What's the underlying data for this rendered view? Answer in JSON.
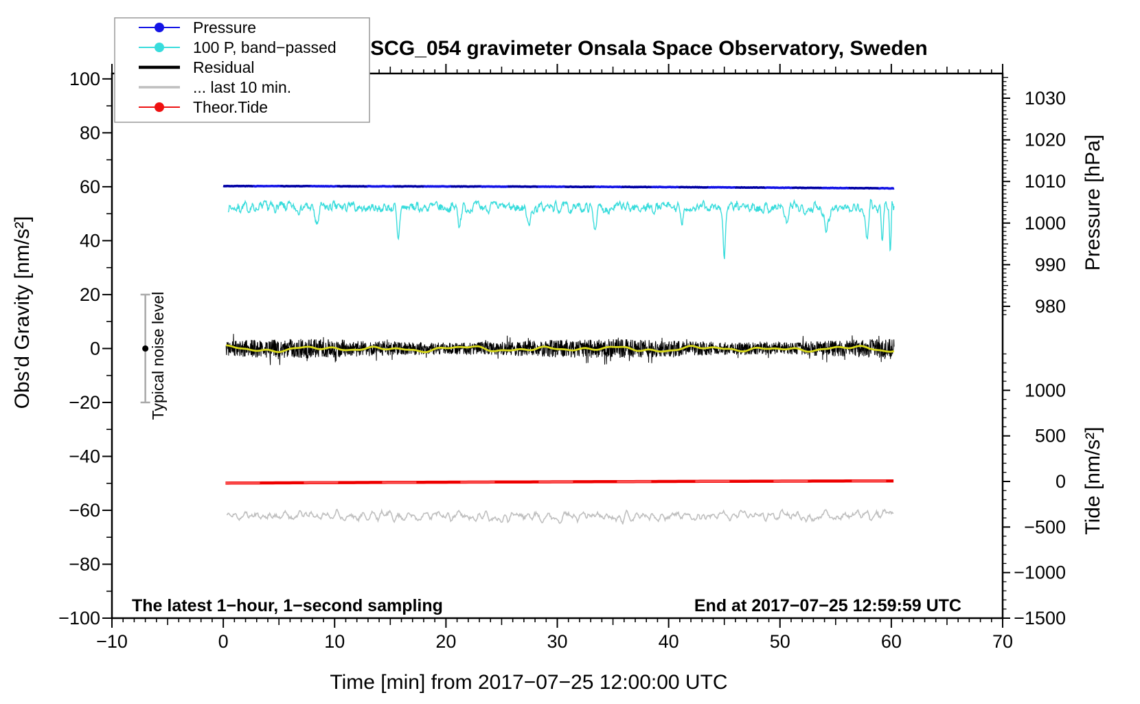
{
  "title": "SCG_054 gravimeter Onsala Space Observatory, Sweden",
  "legend": {
    "items": [
      {
        "label": "Pressure",
        "color": "#1414E6",
        "line_width": 2,
        "marker": true
      },
      {
        "label": "100 P, band−passed",
        "color": "#38DCDC",
        "line_width": 2,
        "marker": true
      },
      {
        "label": "Residual",
        "color": "#000000",
        "line_width": 4.5,
        "marker": false
      },
      {
        "label": "... last 10 min.",
        "color": "#BFBFBF",
        "line_width": 3.5,
        "marker": false
      },
      {
        "label": "Theor.Tide",
        "color": "#EE1111",
        "line_width": 2,
        "marker": true
      }
    ]
  },
  "axes": {
    "x": {
      "label": "Time [min] from 2017−07−25 12:00:00 UTC",
      "range": [
        -10,
        70
      ],
      "tick_values": [
        -10,
        0,
        10,
        20,
        30,
        40,
        50,
        60,
        70
      ],
      "tick_labels": [
        "−10",
        "0",
        "10",
        "20",
        "30",
        "40",
        "50",
        "60",
        "70"
      ],
      "minor_step": 1,
      "medium_step": 5
    },
    "gravity": {
      "label": "Obs'd Gravity [nm/s²]",
      "range": [
        -100,
        100
      ],
      "tick_values": [
        100,
        80,
        60,
        40,
        20,
        0,
        -20,
        -40,
        -60,
        -80,
        -100
      ],
      "tick_labels": [
        "100",
        "80",
        "60",
        "40",
        "20",
        "0",
        "−20",
        "−40",
        "−60",
        "−80",
        "−100"
      ],
      "minor_step": 10
    },
    "pressure": {
      "label": "Pressure [hPa]",
      "tick_values": [
        1030,
        1020,
        1010,
        1000,
        990,
        980
      ],
      "tick_labels": [
        "1030",
        "1020",
        "1010",
        "1000",
        "990",
        "980"
      ],
      "minor_step": 1,
      "medium_step": 5
    },
    "tide": {
      "label": "Tide [nm/s²]",
      "tick_values": [
        1000,
        500,
        0,
        -500,
        -1000,
        -1500
      ],
      "tick_labels": [
        "1000",
        "500",
        "0",
        "−500",
        "−1000",
        "−1500"
      ],
      "minor_step": 100
    }
  },
  "annotations": {
    "sampling": "The latest 1−hour, 1−second sampling",
    "end_time": "End at 2017−07−25 12:59:59 UTC",
    "noise_label": "Typical noise level"
  },
  "chart_data": {
    "type": "line",
    "title": "SCG_054 gravimeter Onsala Space Observatory, Sweden",
    "xlabel": "Time [min] from 2017−07−25 12:00:00 UTC",
    "x_range_min": [
      -10,
      70
    ],
    "data_time_span_min": [
      0,
      60.25
    ],
    "left_axis": {
      "label": "Obs'd Gravity [nm/s²]",
      "range": [
        -100,
        100
      ]
    },
    "right_axis_top": {
      "label": "Pressure [hPa]",
      "visible_ticks": [
        1030,
        1020,
        1010,
        1000,
        990,
        980
      ]
    },
    "right_axis_bottom": {
      "label": "Tide [nm/s²]",
      "visible_ticks": [
        1000,
        500,
        0,
        -500,
        -1000,
        -1500
      ]
    },
    "series": [
      {
        "name": "Pressure",
        "axis": "pressure",
        "unit": "hPa",
        "color": "#1414E6",
        "marker_color": "#0000A0",
        "style": "thick_beaded",
        "width": 3.6,
        "checkpoints": [
          [
            0,
            1008.9
          ],
          [
            10,
            1008.85
          ],
          [
            20,
            1008.8
          ],
          [
            30,
            1008.75
          ],
          [
            40,
            1008.65
          ],
          [
            50,
            1008.5
          ],
          [
            60,
            1008.35
          ]
        ],
        "noise_amp_hPa": 0.05
      },
      {
        "name": "100 P, band−passed",
        "axis": "gravity",
        "unit": "nm/s²",
        "color": "#38DCDC",
        "style": "thin_noisy",
        "width": 1.4,
        "mean": 52.3,
        "noise_amp": 2.6,
        "end_burst_from_min": 56.5,
        "dips": [
          [
            8.4,
            -7,
            0.15
          ],
          [
            15.7,
            -12,
            0.12
          ],
          [
            21.2,
            -6,
            0.12
          ],
          [
            27.5,
            -5,
            0.2
          ],
          [
            33.4,
            -7,
            0.15
          ],
          [
            41.2,
            -6,
            0.15
          ],
          [
            45.0,
            -19,
            0.1
          ],
          [
            50.6,
            -6,
            0.15
          ],
          [
            54.2,
            -7,
            0.2
          ],
          [
            57.8,
            -11,
            0.12
          ],
          [
            59.2,
            -13,
            0.1
          ],
          [
            59.9,
            -14,
            0.08
          ],
          [
            60.05,
            5,
            0.06
          ]
        ]
      },
      {
        "name": "Residual",
        "axis": "gravity",
        "unit": "nm/s²",
        "color": "#000000",
        "style": "dense_noise",
        "width": 1,
        "mean": 0,
        "noise_amp": 2.9
      },
      {
        "name": "Residual smoothed overlay",
        "axis": "gravity",
        "unit": "nm/s²",
        "color": "#D8D818",
        "style": "smooth",
        "width": 2.8,
        "mean": -0.15,
        "amp": 1.0,
        "period_min": 7.0
      },
      {
        "name": "... last 10 min.",
        "axis": "gravity",
        "unit": "nm/s²",
        "color": "#BFBFBF",
        "style": "noisy",
        "width": 1.6,
        "mean": -62,
        "noise_amp": 2.2
      },
      {
        "name": "Theor.Tide",
        "axis": "tide",
        "unit": "nm/s²",
        "color": "#EE0000",
        "marker_color": "#FF6060",
        "style": "thick",
        "width": 4.5,
        "checkpoints": [
          [
            0,
            -18
          ],
          [
            15,
            -10
          ],
          [
            30,
            -4
          ],
          [
            45,
            2
          ],
          [
            60,
            6
          ]
        ]
      }
    ],
    "noise_bar": {
      "x_min": -7,
      "center": 0,
      "half_range": 20,
      "label": "Typical noise level"
    }
  }
}
